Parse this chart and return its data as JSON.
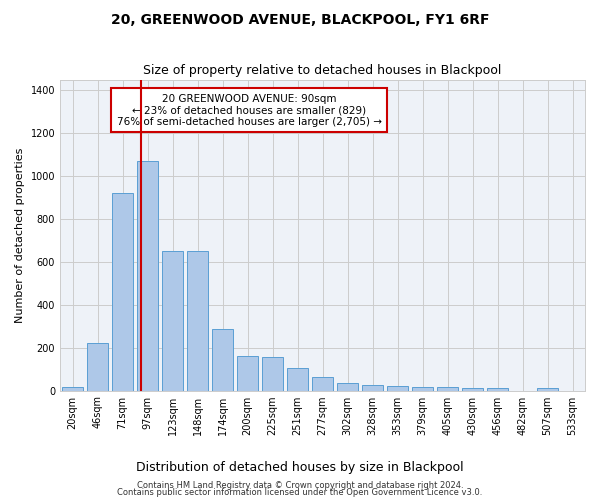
{
  "title": "20, GREENWOOD AVENUE, BLACKPOOL, FY1 6RF",
  "subtitle": "Size of property relative to detached houses in Blackpool",
  "xlabel": "Distribution of detached houses by size in Blackpool",
  "ylabel": "Number of detached properties",
  "categories": [
    "20sqm",
    "46sqm",
    "71sqm",
    "97sqm",
    "123sqm",
    "148sqm",
    "174sqm",
    "200sqm",
    "225sqm",
    "251sqm",
    "277sqm",
    "302sqm",
    "328sqm",
    "353sqm",
    "379sqm",
    "405sqm",
    "430sqm",
    "456sqm",
    "482sqm",
    "507sqm",
    "533sqm"
  ],
  "values": [
    15,
    220,
    920,
    1070,
    650,
    650,
    285,
    160,
    155,
    105,
    65,
    35,
    28,
    20,
    18,
    15,
    12,
    10,
    0,
    10,
    0
  ],
  "bar_color": "#aec8e8",
  "bar_edge_color": "#5a9fd4",
  "vline_x": 2.72,
  "vline_color": "#cc0000",
  "annotation_text": "20 GREENWOOD AVENUE: 90sqm\n← 23% of detached houses are smaller (829)\n76% of semi-detached houses are larger (2,705) →",
  "annotation_box_color": "#ffffff",
  "annotation_box_edge": "#cc0000",
  "ylim": [
    0,
    1450
  ],
  "yticks": [
    0,
    200,
    400,
    600,
    800,
    1000,
    1200,
    1400
  ],
  "grid_color": "#cccccc",
  "bg_color": "#eef2f8",
  "footer1": "Contains HM Land Registry data © Crown copyright and database right 2024.",
  "footer2": "Contains public sector information licensed under the Open Government Licence v3.0."
}
